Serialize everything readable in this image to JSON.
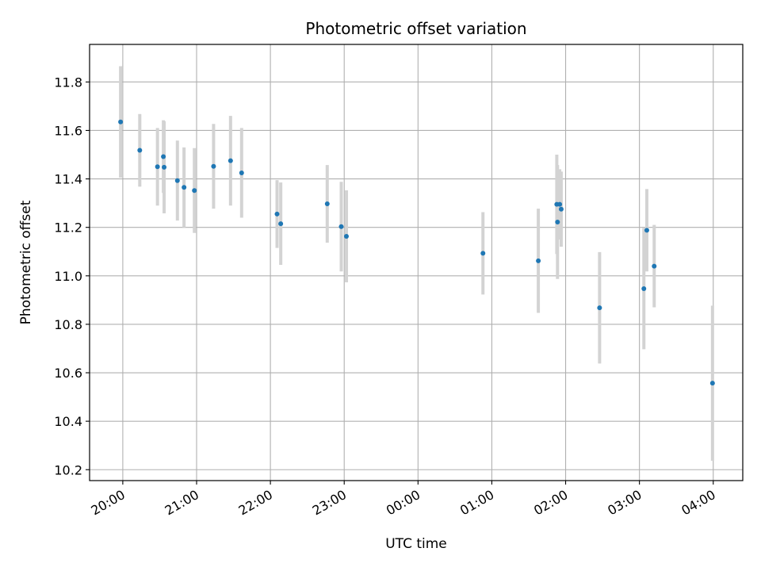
{
  "chart_data": {
    "type": "scatter",
    "title": "Photometric offset variation",
    "xlabel": "UTC time",
    "ylabel": "Photometric offset",
    "grid": true,
    "x_unit": "hours since 20:00 UTC",
    "xlim": [
      -0.45,
      8.4
    ],
    "ylim": [
      10.155,
      11.955
    ],
    "x_ticks": [
      {
        "value": 0,
        "label": "20:00"
      },
      {
        "value": 1,
        "label": "21:00"
      },
      {
        "value": 2,
        "label": "22:00"
      },
      {
        "value": 3,
        "label": "23:00"
      },
      {
        "value": 4,
        "label": "00:00"
      },
      {
        "value": 5,
        "label": "01:00"
      },
      {
        "value": 6,
        "label": "02:00"
      },
      {
        "value": 7,
        "label": "03:00"
      },
      {
        "value": 8,
        "label": "04:00"
      }
    ],
    "y_ticks": [
      {
        "value": 10.2,
        "label": "10.2"
      },
      {
        "value": 10.4,
        "label": "10.4"
      },
      {
        "value": 10.6,
        "label": "10.6"
      },
      {
        "value": 10.8,
        "label": "10.8"
      },
      {
        "value": 11.0,
        "label": "11.0"
      },
      {
        "value": 11.2,
        "label": "11.2"
      },
      {
        "value": 11.4,
        "label": "11.4"
      },
      {
        "value": 11.6,
        "label": "11.6"
      },
      {
        "value": 11.8,
        "label": "11.8"
      }
    ],
    "point_color": "#1f77b4",
    "errorbar_color": "#d3d3d3",
    "points": [
      {
        "x": -0.03,
        "y": 11.635,
        "err": 0.23
      },
      {
        "x": 0.23,
        "y": 11.518,
        "err": 0.15
      },
      {
        "x": 0.47,
        "y": 11.45,
        "err": 0.16
      },
      {
        "x": 0.55,
        "y": 11.492,
        "err": 0.15
      },
      {
        "x": 0.56,
        "y": 11.448,
        "err": 0.19
      },
      {
        "x": 0.74,
        "y": 11.393,
        "err": 0.165
      },
      {
        "x": 0.83,
        "y": 11.365,
        "err": 0.165
      },
      {
        "x": 0.97,
        "y": 11.352,
        "err": 0.175
      },
      {
        "x": 1.23,
        "y": 11.452,
        "err": 0.175
      },
      {
        "x": 1.46,
        "y": 11.475,
        "err": 0.185
      },
      {
        "x": 1.61,
        "y": 11.425,
        "err": 0.185
      },
      {
        "x": 2.09,
        "y": 11.255,
        "err": 0.14
      },
      {
        "x": 2.14,
        "y": 11.215,
        "err": 0.17
      },
      {
        "x": 2.77,
        "y": 11.297,
        "err": 0.16
      },
      {
        "x": 2.96,
        "y": 11.203,
        "err": 0.185
      },
      {
        "x": 3.03,
        "y": 11.163,
        "err": 0.19
      },
      {
        "x": 4.88,
        "y": 11.093,
        "err": 0.17
      },
      {
        "x": 5.63,
        "y": 11.062,
        "err": 0.215
      },
      {
        "x": 5.88,
        "y": 11.295,
        "err": 0.205
      },
      {
        "x": 5.89,
        "y": 11.222,
        "err": 0.235
      },
      {
        "x": 5.92,
        "y": 11.295,
        "err": 0.145
      },
      {
        "x": 5.94,
        "y": 11.275,
        "err": 0.155
      },
      {
        "x": 6.46,
        "y": 10.868,
        "err": 0.23
      },
      {
        "x": 7.06,
        "y": 10.947,
        "err": 0.25
      },
      {
        "x": 7.1,
        "y": 11.188,
        "err": 0.17
      },
      {
        "x": 7.2,
        "y": 11.04,
        "err": 0.17
      },
      {
        "x": 7.99,
        "y": 10.557,
        "err": 0.32
      }
    ]
  }
}
